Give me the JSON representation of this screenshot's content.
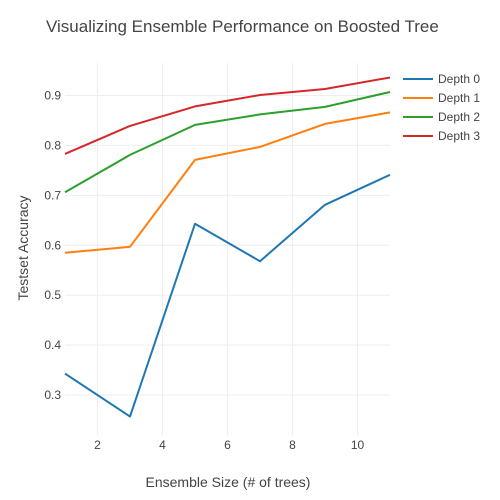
{
  "chart_data": {
    "type": "line",
    "title": "Visualizing Ensemble Performance on Boosted Tree",
    "xlabel": "Ensemble Size (# of trees)",
    "ylabel": "Testset Accuracy",
    "x": [
      1,
      3,
      5,
      7,
      9,
      11
    ],
    "xlim": [
      1,
      11
    ],
    "ylim": [
      0.22,
      0.965
    ],
    "xticks": [
      2,
      4,
      6,
      8,
      10
    ],
    "yticks": [
      0.3,
      0.4,
      0.5,
      0.6,
      0.7,
      0.8,
      0.9
    ],
    "grid": true,
    "legend_position": "top-right",
    "series": [
      {
        "name": "Depth 0",
        "color": "#1f77b4",
        "values": [
          0.343,
          0.257,
          0.643,
          0.568,
          0.681,
          0.741
        ]
      },
      {
        "name": "Depth 1",
        "color": "#ff7f0e",
        "values": [
          0.585,
          0.597,
          0.771,
          0.797,
          0.843,
          0.866
        ]
      },
      {
        "name": "Depth 2",
        "color": "#2ca02c",
        "values": [
          0.706,
          0.781,
          0.841,
          0.862,
          0.877,
          0.907
        ]
      },
      {
        "name": "Depth 3",
        "color": "#d62728",
        "values": [
          0.783,
          0.839,
          0.878,
          0.901,
          0.913,
          0.936
        ]
      }
    ]
  }
}
